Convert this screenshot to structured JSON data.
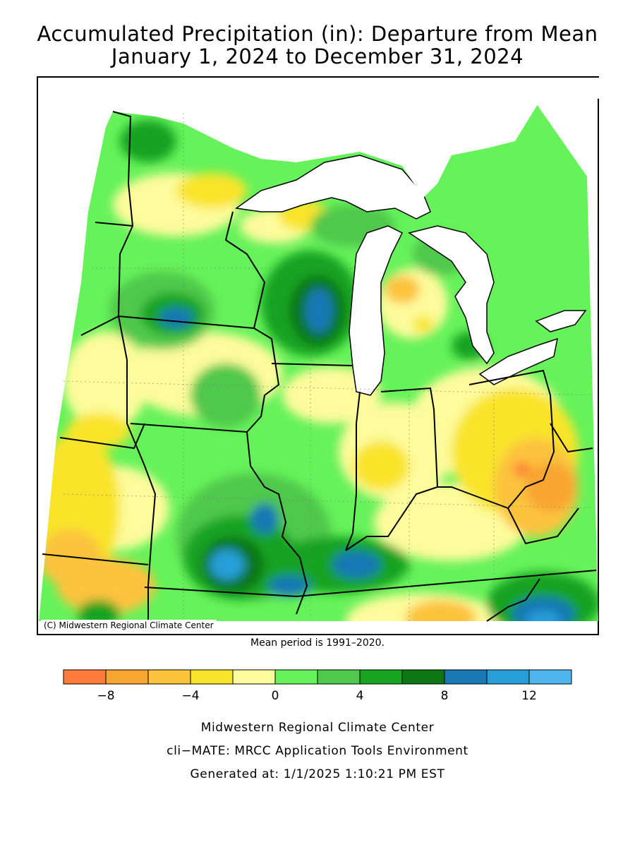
{
  "title_line1": "Accumulated Precipitation (in): Departure from Mean",
  "title_line2": "January 1, 2024 to December 31, 2024",
  "credit": "(C) Midwestern Regional Climate Center",
  "mean_period": "Mean period is 1991–2020.",
  "legend": {
    "colors": [
      "#ff7c3a",
      "#f8a530",
      "#fcc33c",
      "#f9e42c",
      "#fdfb9b",
      "#66f25a",
      "#4fc84c",
      "#18a321",
      "#0d7714",
      "#1878b4",
      "#289ed9",
      "#4fb6ee"
    ],
    "ticks": [
      {
        "value": -8,
        "label": "−8"
      },
      {
        "value": -4,
        "label": "−4"
      },
      {
        "value": 0,
        "label": "0"
      },
      {
        "value": 4,
        "label": "4"
      },
      {
        "value": 8,
        "label": "8"
      },
      {
        "value": 12,
        "label": "12"
      }
    ],
    "min": -10,
    "max": 14
  },
  "footer": {
    "line1": "Midwestern Regional Climate Center",
    "line2": "cli−MATE: MRCC Application Tools Environment",
    "line3": "Generated at: 1/1/2025 1:10:21 PM EST"
  }
}
